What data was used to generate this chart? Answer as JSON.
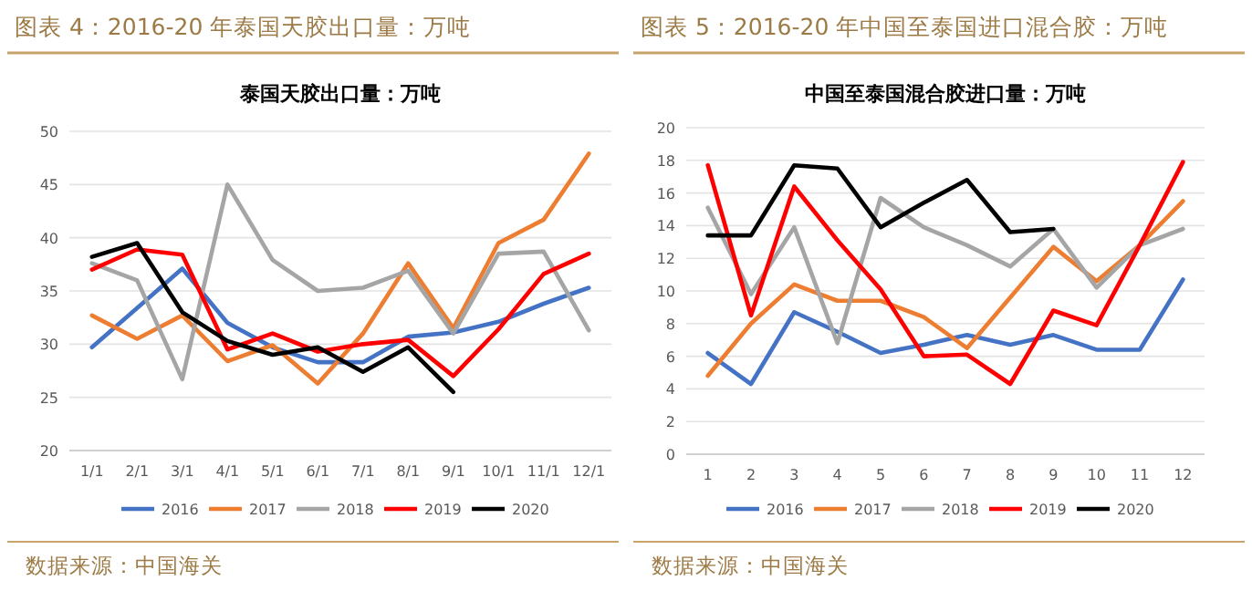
{
  "chart_data": [
    {
      "type": "line",
      "title": "图表 4：2016-20 年泰国天胶出口量：万吨",
      "subtitle": "泰国天胶出口量：万吨",
      "categories": [
        "1/1",
        "2/1",
        "3/1",
        "4/1",
        "5/1",
        "6/1",
        "7/1",
        "8/1",
        "9/1",
        "10/1",
        "11/1",
        "12/1"
      ],
      "ylim": [
        20,
        50
      ],
      "yticks": [
        20,
        25,
        30,
        35,
        40,
        45,
        50
      ],
      "grid": "y",
      "legend": "bottom",
      "annotations": [
        "数据来源：中国海关"
      ],
      "series": [
        {
          "name": "2016",
          "color": "#4472c4",
          "values": [
            29.7,
            33.4,
            37.1,
            32,
            29.7,
            28.3,
            28.3,
            30.7,
            31.1,
            32.1,
            33.8,
            35.3
          ]
        },
        {
          "name": "2017",
          "color": "#ed7d31",
          "values": [
            32.7,
            30.5,
            32.7,
            28.4,
            29.9,
            26.3,
            31,
            37.6,
            31.5,
            39.5,
            41.7,
            47.9
          ]
        },
        {
          "name": "2018",
          "color": "#a5a5a5",
          "values": [
            37.6,
            36,
            26.7,
            45,
            37.9,
            35,
            35.3,
            36.9,
            31,
            38.5,
            38.7,
            31.3
          ]
        },
        {
          "name": "2019",
          "color": "#ff0000",
          "values": [
            37,
            38.9,
            38.4,
            29.5,
            31,
            29.3,
            30,
            30.4,
            27,
            31.4,
            36.6,
            38.5
          ]
        },
        {
          "name": "2020",
          "color": "#000000",
          "values": [
            38.2,
            39.5,
            33,
            30.3,
            29,
            29.7,
            27.4,
            29.7,
            25.5,
            null,
            null,
            null
          ]
        }
      ]
    },
    {
      "type": "line",
      "title": "图表 5：2016-20 年中国至泰国进口混合胶：万吨",
      "subtitle": "中国至泰国混合胶进口量：万吨",
      "categories": [
        "1",
        "2",
        "3",
        "4",
        "5",
        "6",
        "7",
        "8",
        "9",
        "10",
        "11",
        "12"
      ],
      "ylim": [
        0,
        20
      ],
      "yticks": [
        0,
        2,
        4,
        6,
        8,
        10,
        12,
        14,
        16,
        18,
        20
      ],
      "grid": "y",
      "legend": "bottom",
      "annotations": [
        "数据来源：中国海关"
      ],
      "series": [
        {
          "name": "2016",
          "color": "#4472c4",
          "values": [
            6.2,
            4.3,
            8.7,
            7.5,
            6.2,
            6.7,
            7.3,
            6.7,
            7.3,
            6.4,
            6.4,
            10.7
          ]
        },
        {
          "name": "2017",
          "color": "#ed7d31",
          "values": [
            4.8,
            8,
            10.4,
            9.4,
            9.4,
            8.4,
            6.5,
            9.6,
            12.7,
            10.6,
            12.8,
            15.5
          ]
        },
        {
          "name": "2018",
          "color": "#a5a5a5",
          "values": [
            15.1,
            9.8,
            13.9,
            6.8,
            15.7,
            13.9,
            12.8,
            11.5,
            13.8,
            10.2,
            12.8,
            13.8
          ]
        },
        {
          "name": "2019",
          "color": "#ff0000",
          "values": [
            17.7,
            8.5,
            16.4,
            13.1,
            10.1,
            6,
            6.1,
            4.3,
            8.8,
            7.9,
            12.8,
            17.9
          ]
        },
        {
          "name": "2020",
          "color": "#000000",
          "values": [
            13.4,
            13.4,
            17.7,
            17.5,
            13.9,
            15.4,
            16.8,
            13.6,
            13.8,
            null,
            null,
            null
          ]
        }
      ]
    }
  ]
}
